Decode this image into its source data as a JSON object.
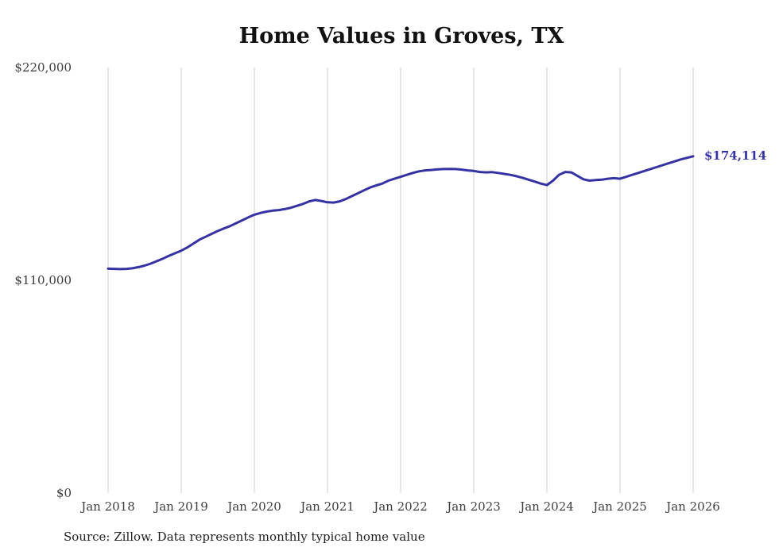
{
  "page": {
    "title": "Home Values in Groves, TX",
    "source_note": "Source: Zillow. Data represents monthly typical home value"
  },
  "chart_data": {
    "type": "line",
    "title": "Home Values in Groves, TX",
    "xlabel": "",
    "ylabel": "",
    "ylim": [
      0,
      220000
    ],
    "y_ticks": [
      220000,
      110000,
      0
    ],
    "y_tick_labels": [
      "$220,000",
      "$110,000",
      "$0"
    ],
    "x_tick_labels": [
      "Jan 2018",
      "Jan 2019",
      "Jan 2020",
      "Jan 2021",
      "Jan 2022",
      "Jan 2023",
      "Jan 2024",
      "Jan 2025",
      "Jan 2026"
    ],
    "grid": "vertical-only",
    "legend": "none",
    "line_color": "#3533a3",
    "grid_color": "#cccccc",
    "end_label": "$174,114",
    "final_value": 174114,
    "source": "Source: Zillow. Data represents monthly typical home value",
    "series": [
      {
        "name": "Typical home value",
        "start": "Jan 2018",
        "frequency": "monthly",
        "values": [
          116000,
          115900,
          115800,
          115900,
          116200,
          116800,
          117600,
          118600,
          119900,
          121200,
          122700,
          124000,
          125300,
          127000,
          129000,
          131000,
          132500,
          134000,
          135500,
          136800,
          138000,
          139500,
          141000,
          142500,
          143900,
          144800,
          145500,
          146000,
          146300,
          146800,
          147500,
          148500,
          149500,
          150800,
          151500,
          151000,
          150300,
          150200,
          150800,
          152000,
          153500,
          155000,
          156500,
          158000,
          159000,
          160000,
          161500,
          162500,
          163500,
          164500,
          165500,
          166300,
          166800,
          167000,
          167300,
          167500,
          167600,
          167500,
          167200,
          166800,
          166500,
          166000,
          165800,
          165900,
          165500,
          165000,
          164500,
          163800,
          163000,
          162000,
          161000,
          160000,
          159200,
          161500,
          164500,
          166000,
          165800,
          164000,
          162200,
          161500,
          161800,
          162000,
          162500,
          162800,
          162500,
          163500,
          164500,
          165500,
          166500,
          167500,
          168500,
          169500,
          170500,
          171500,
          172500,
          173300,
          174114
        ]
      }
    ]
  }
}
